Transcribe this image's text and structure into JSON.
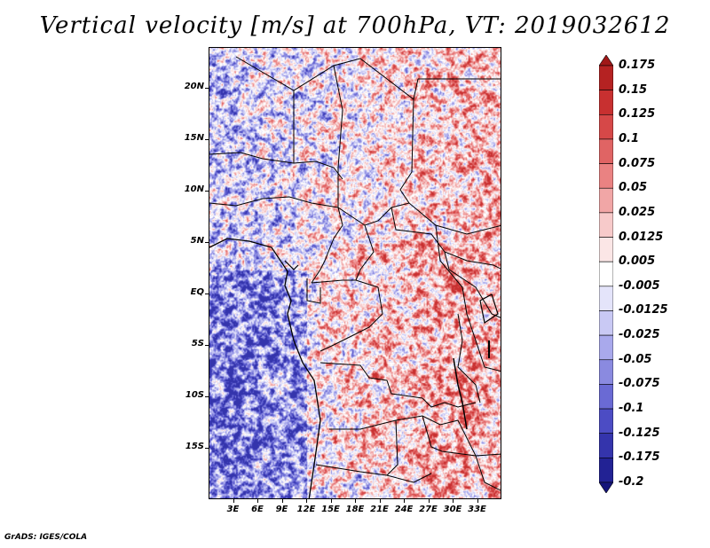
{
  "title": "Vertical velocity [m/s] at 700hPa, VT: 2019032612",
  "footer": "GrADS: IGES/COLA",
  "lat_labels": [
    "20N",
    "15N",
    "10N",
    "5N",
    "EQ",
    "5S",
    "10S",
    "15S"
  ],
  "lon_labels": [
    "3E",
    "6E",
    "9E",
    "12E",
    "15E",
    "18E",
    "21E",
    "24E",
    "27E",
    "30E",
    "33E"
  ],
  "colorbar": {
    "labels": [
      "0.175",
      "0.15",
      "0.125",
      "0.1",
      "0.075",
      "0.05",
      "0.025",
      "0.0125",
      "0.005",
      "-0.005",
      "-0.0125",
      "-0.025",
      "-0.05",
      "-0.075",
      "-0.1",
      "-0.125",
      "-0.175",
      "-0.2"
    ],
    "colors": [
      "#a01818",
      "#b52222",
      "#c83030",
      "#d64848",
      "#e06464",
      "#ea8282",
      "#f1a6a6",
      "#f7caca",
      "#fbe6e6",
      "#ffffff",
      "#e4e4fa",
      "#c9c9f4",
      "#a9a9ec",
      "#8a8ae0",
      "#6a6ad4",
      "#4c4cc4",
      "#3434ac",
      "#222294",
      "#14147a"
    ]
  },
  "chart_data": {
    "type": "heatmap",
    "variable": "Vertical velocity",
    "units": "m/s",
    "level": "700hPa",
    "valid_time": "2019032612",
    "lon_range": [
      0,
      36
    ],
    "lat_range": [
      -20,
      24
    ],
    "contour_levels": [
      -0.2,
      -0.175,
      -0.125,
      -0.1,
      -0.075,
      -0.05,
      -0.025,
      -0.0125,
      -0.005,
      0.005,
      0.0125,
      0.025,
      0.05,
      0.075,
      0.1,
      0.125,
      0.15,
      0.175
    ]
  }
}
